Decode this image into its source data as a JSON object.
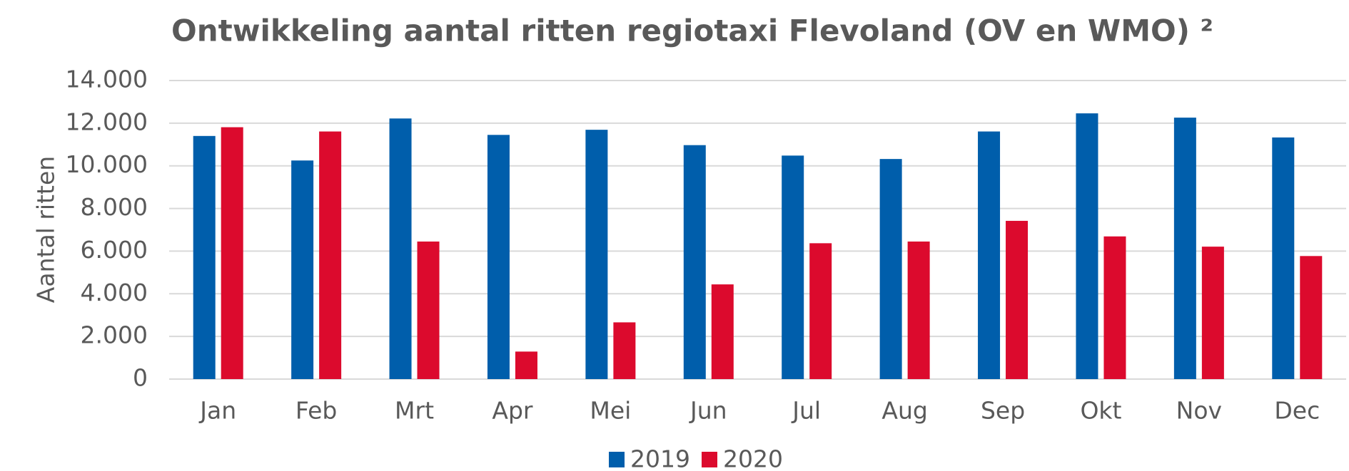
{
  "chart_data": {
    "type": "bar",
    "title": "Ontwikkeling aantal ritten regiotaxi Flevoland (OV en WMO) ²",
    "y_label": "Aantal ritten",
    "categories": [
      "Jan",
      "Feb",
      "Mrt",
      "Apr",
      "Mei",
      "Jun",
      "Jul",
      "Aug",
      "Sep",
      "Okt",
      "Nov",
      "Dec"
    ],
    "series": [
      {
        "name": "2019",
        "color": "#005eab",
        "values": [
          11400,
          10250,
          12220,
          11450,
          11690,
          10970,
          10480,
          10320,
          11610,
          12460,
          12260,
          11330
        ]
      },
      {
        "name": "2020",
        "color": "#dc0a2d",
        "values": [
          11810,
          11610,
          6450,
          1290,
          2660,
          4440,
          6370,
          6450,
          7420,
          6690,
          6210,
          5770
        ]
      }
    ],
    "ylim": [
      0,
      14000
    ],
    "yticks": [
      0,
      {
        "value": 2000,
        "label": "2.000"
      },
      {
        "value": 4000,
        "label": "4.000"
      },
      {
        "value": 6000,
        "label": "6.000"
      },
      {
        "value": 8000,
        "label": "8.000"
      },
      {
        "value": 10000,
        "label": "10.000"
      },
      {
        "value": 12000,
        "label": "12.000"
      },
      {
        "value": 14000,
        "label": "14.000"
      }
    ],
    "grid": true,
    "legend": "bottom"
  }
}
